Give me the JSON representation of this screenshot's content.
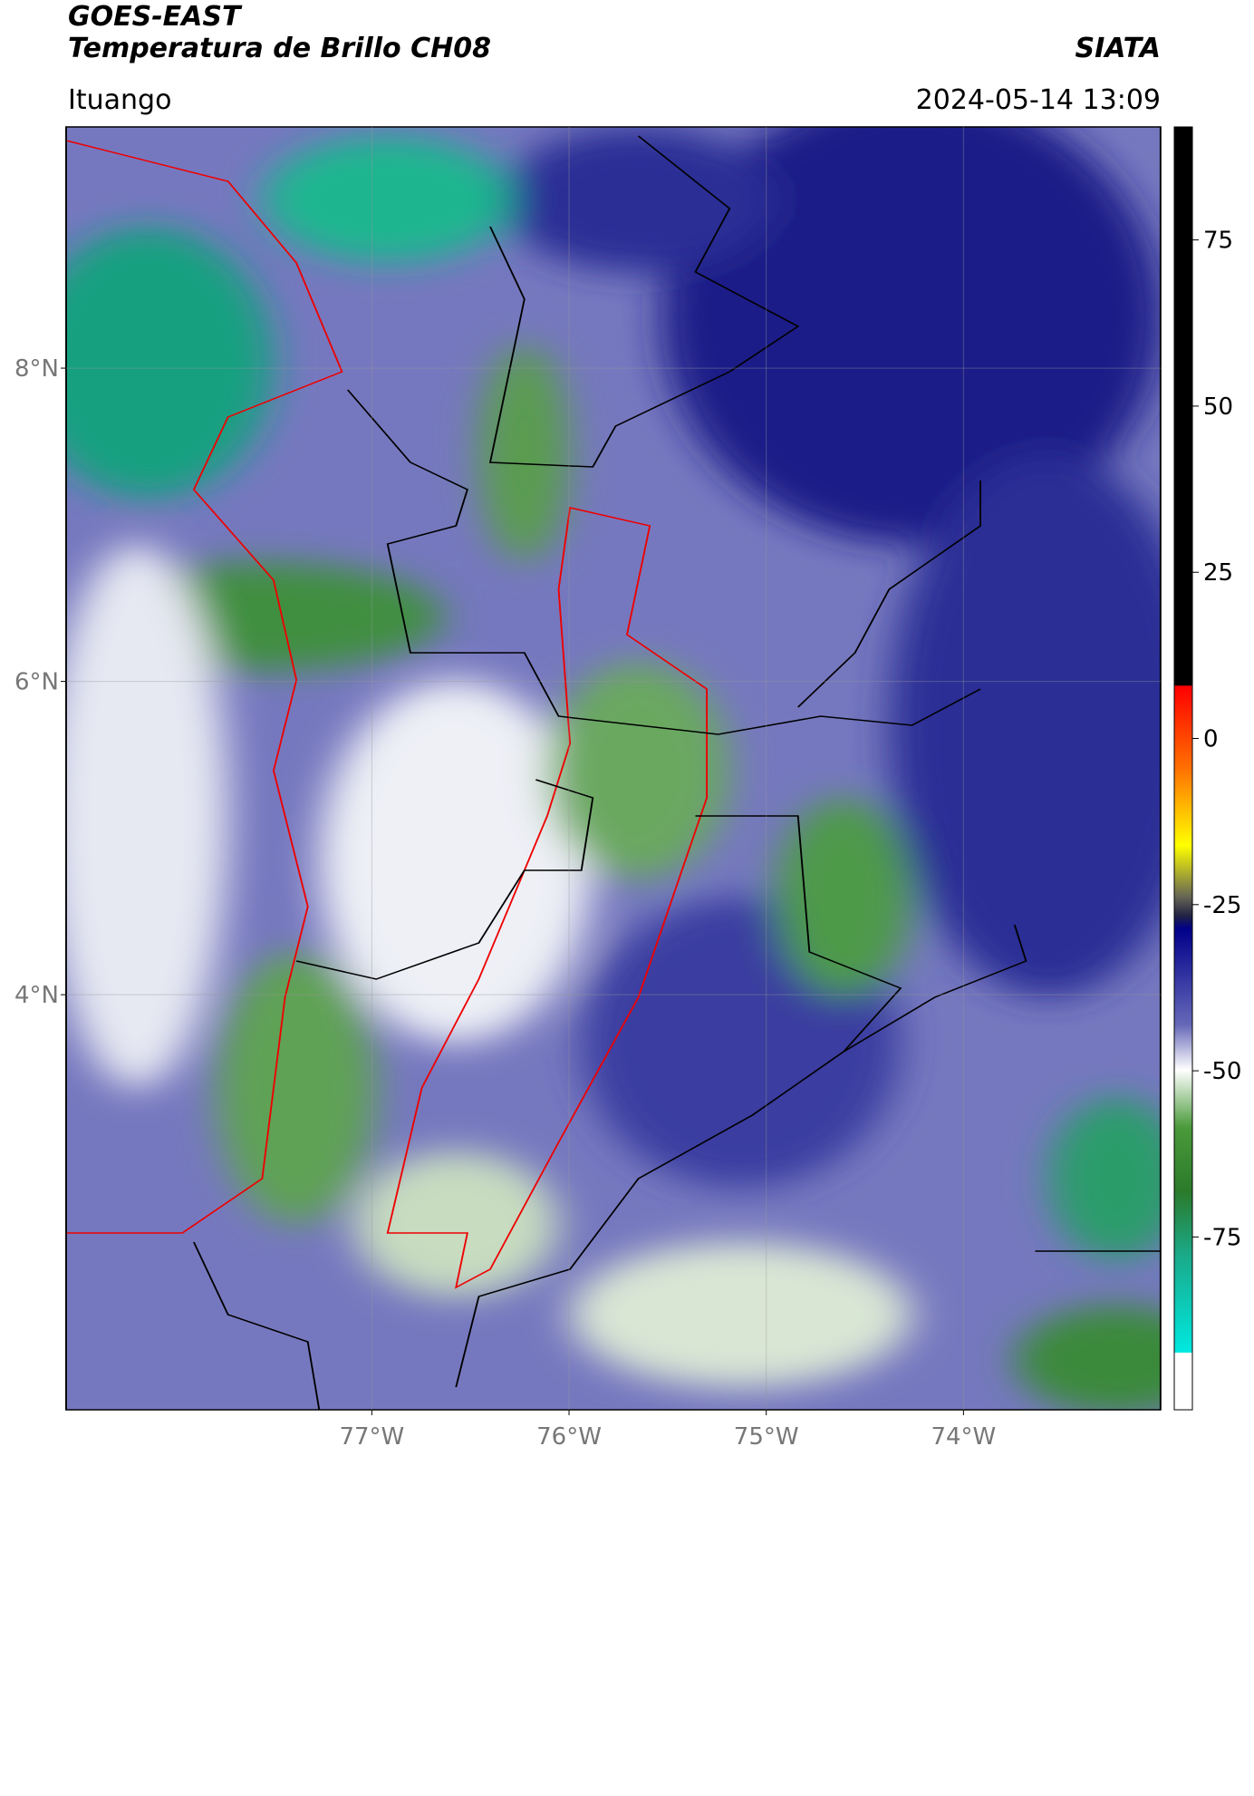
{
  "header": {
    "satellite": "GOES-EAST",
    "product": "Temperatura de Brillo CH08",
    "org": "SIATA",
    "location": "Ituango",
    "datetime": "2024-05-14 13:09"
  },
  "map": {
    "lonlim": [
      -78.55,
      -73.0
    ],
    "latlim": [
      1.35,
      9.54
    ],
    "lat_ticks": [
      {
        "value": 8,
        "label": "8°N"
      },
      {
        "value": 6,
        "label": "6°N"
      },
      {
        "value": 4,
        "label": "4°N"
      }
    ],
    "lon_ticks": [
      {
        "value": -77,
        "label": "77°W"
      },
      {
        "value": -76,
        "label": "76°W"
      },
      {
        "value": -75,
        "label": "75°W"
      },
      {
        "value": -74,
        "label": "74°W"
      }
    ]
  },
  "colorbar": {
    "lim": [
      -101,
      92
    ],
    "ticks": [
      75,
      50,
      25,
      0,
      -25,
      -50,
      -75
    ]
  }
}
